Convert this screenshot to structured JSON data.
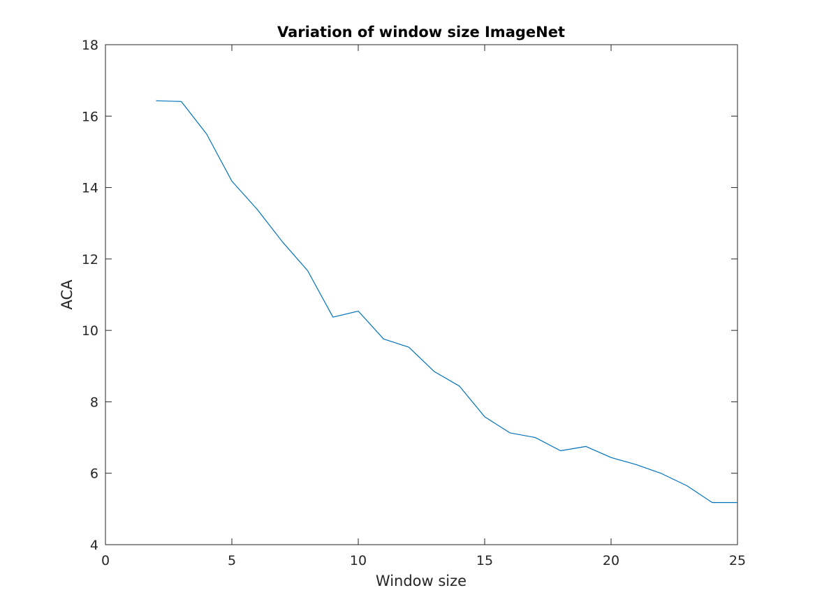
{
  "chart_data": {
    "type": "line",
    "title": "Variation of window size ImageNet",
    "xlabel": "Window size",
    "ylabel": "ACA",
    "xlim": [
      0,
      25
    ],
    "ylim": [
      4,
      18
    ],
    "xticks": [
      "0",
      "5",
      "10",
      "15",
      "20",
      "25"
    ],
    "yticks": [
      "4",
      "6",
      "8",
      "10",
      "12",
      "14",
      "16",
      "18"
    ],
    "grid": false,
    "series": [
      {
        "color": "#0072BD",
        "x": [
          2,
          3,
          4,
          5,
          6,
          7,
          8,
          9,
          10,
          11,
          12,
          13,
          14,
          15,
          16,
          17,
          18,
          19,
          20,
          21,
          22,
          23,
          24,
          25
        ],
        "y": [
          16.43,
          16.41,
          15.5,
          14.18,
          13.39,
          12.48,
          11.67,
          10.37,
          10.54,
          9.76,
          9.53,
          8.85,
          8.44,
          7.58,
          7.13,
          7.0,
          6.63,
          6.75,
          6.44,
          6.24,
          5.99,
          5.65,
          5.18,
          5.18
        ]
      }
    ]
  }
}
